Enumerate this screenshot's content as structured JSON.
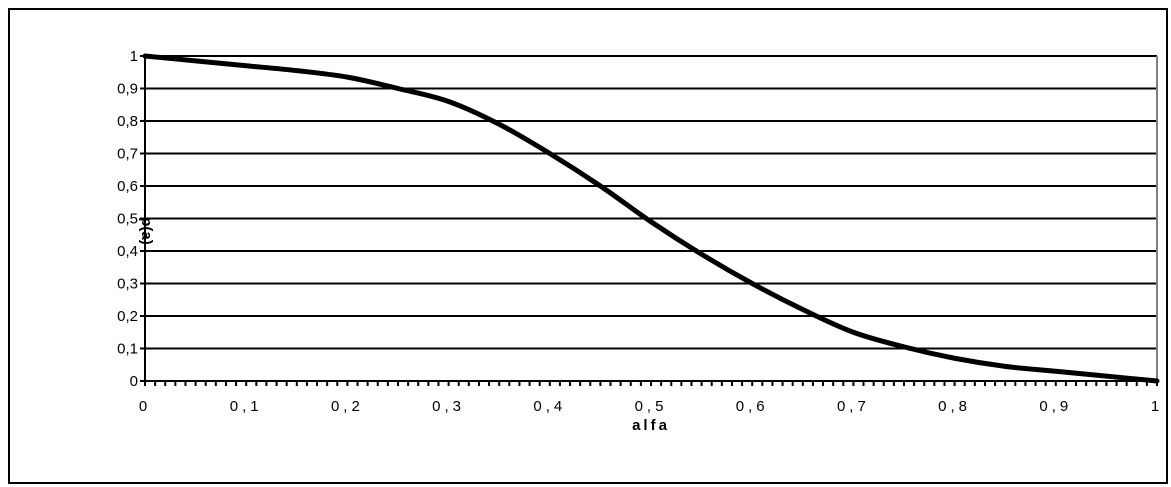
{
  "chart_data": {
    "type": "line",
    "title": "",
    "xlabel": "alfa",
    "ylabel": "p(a)",
    "xlim": [
      0,
      1
    ],
    "ylim": [
      0,
      1
    ],
    "x_ticks": [
      "0",
      "0,1",
      "0,2",
      "0,3",
      "0,4",
      "0,5",
      "0,6",
      "0,7",
      "0,8",
      "0,9",
      "1"
    ],
    "y_ticks": [
      "0",
      "0,1",
      "0,2",
      "0,3",
      "0,4",
      "0,5",
      "0,6",
      "0,7",
      "0,8",
      "0,9",
      "1"
    ],
    "grid": true,
    "legend": "none",
    "series": [
      {
        "name": "",
        "x": [
          0,
          0.05,
          0.1,
          0.15,
          0.2,
          0.25,
          0.3,
          0.35,
          0.4,
          0.45,
          0.5,
          0.55,
          0.6,
          0.65,
          0.7,
          0.75,
          0.8,
          0.85,
          0.9,
          0.95,
          1
        ],
        "y": [
          1,
          0.985,
          0.97,
          0.955,
          0.935,
          0.9,
          0.86,
          0.79,
          0.7,
          0.6,
          0.49,
          0.39,
          0.3,
          0.22,
          0.15,
          0.105,
          0.07,
          0.045,
          0.03,
          0.015,
          0
        ]
      }
    ]
  },
  "colors": {
    "line": "#000000",
    "grid": "#000000",
    "right_border": "#808080"
  }
}
